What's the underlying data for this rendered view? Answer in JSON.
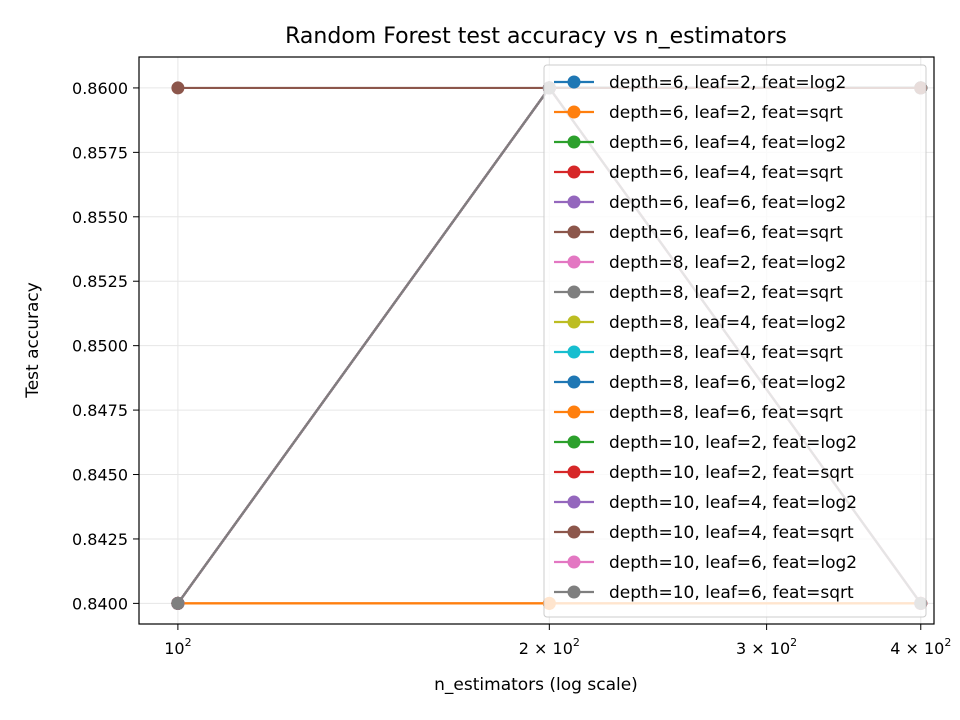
{
  "chart_data": {
    "type": "line",
    "title": "Random Forest test accuracy vs n_estimators",
    "xlabel": "n_estimators (log scale)",
    "ylabel": "Test accuracy",
    "x_scale": "log",
    "x": [
      100,
      200,
      400
    ],
    "xlim": [
      93,
      410
    ],
    "ylim": [
      0.8392,
      0.8612
    ],
    "x_ticks": [
      {
        "value": 100,
        "base": "10",
        "exp": "2"
      },
      {
        "value": 200,
        "base": "2 × 10",
        "exp": "2"
      },
      {
        "value": 300,
        "base": "3 × 10",
        "exp": "2"
      },
      {
        "value": 400,
        "base": "4 × 10",
        "exp": "2"
      }
    ],
    "y_ticks": [
      "0.8400",
      "0.8425",
      "0.8450",
      "0.8475",
      "0.8500",
      "0.8525",
      "0.8550",
      "0.8575",
      "0.8600"
    ],
    "grid": true,
    "legend_position": "upper right",
    "series": [
      {
        "name": "depth=6, leaf=2, feat=log2",
        "color": "#1f77b4",
        "values": [
          0.84,
          0.86,
          0.86
        ]
      },
      {
        "name": "depth=6, leaf=2, feat=sqrt",
        "color": "#ff7f0e",
        "values": [
          0.84,
          0.84,
          0.84
        ]
      },
      {
        "name": "depth=6, leaf=4, feat=log2",
        "color": "#2ca02c",
        "values": [
          0.84,
          0.86,
          0.86
        ]
      },
      {
        "name": "depth=6, leaf=4, feat=sqrt",
        "color": "#d62728",
        "values": [
          0.84,
          0.86,
          0.84
        ]
      },
      {
        "name": "depth=6, leaf=6, feat=log2",
        "color": "#9467bd",
        "values": [
          0.84,
          0.86,
          0.86
        ]
      },
      {
        "name": "depth=6, leaf=6, feat=sqrt",
        "color": "#8c564b",
        "values": [
          0.86,
          0.86,
          0.86
        ]
      },
      {
        "name": "depth=8, leaf=2, feat=log2",
        "color": "#e377c2",
        "values": [
          0.84,
          0.86,
          0.84
        ]
      },
      {
        "name": "depth=8, leaf=2, feat=sqrt",
        "color": "#7f7f7f",
        "values": [
          0.84,
          0.86,
          0.86
        ]
      },
      {
        "name": "depth=8, leaf=4, feat=log2",
        "color": "#bcbd22",
        "values": [
          0.84,
          0.86,
          0.86
        ]
      },
      {
        "name": "depth=8, leaf=4, feat=sqrt",
        "color": "#17becf",
        "values": [
          0.84,
          0.86,
          0.86
        ]
      },
      {
        "name": "depth=8, leaf=6, feat=log2",
        "color": "#1f77b4",
        "values": [
          0.84,
          0.86,
          0.86
        ]
      },
      {
        "name": "depth=8, leaf=6, feat=sqrt",
        "color": "#ff7f0e",
        "values": [
          0.84,
          0.84,
          0.84
        ]
      },
      {
        "name": "depth=10, leaf=2, feat=log2",
        "color": "#2ca02c",
        "values": [
          0.84,
          0.86,
          0.86
        ]
      },
      {
        "name": "depth=10, leaf=2, feat=sqrt",
        "color": "#d62728",
        "values": [
          0.84,
          0.86,
          0.84
        ]
      },
      {
        "name": "depth=10, leaf=4, feat=log2",
        "color": "#9467bd",
        "values": [
          0.84,
          0.86,
          0.86
        ]
      },
      {
        "name": "depth=10, leaf=4, feat=sqrt",
        "color": "#8c564b",
        "values": [
          0.84,
          0.86,
          0.86
        ]
      },
      {
        "name": "depth=10, leaf=6, feat=log2",
        "color": "#e377c2",
        "values": [
          0.84,
          0.86,
          0.84
        ]
      },
      {
        "name": "depth=10, leaf=6, feat=sqrt",
        "color": "#7f7f7f",
        "values": [
          0.84,
          0.86,
          0.84
        ]
      }
    ]
  }
}
